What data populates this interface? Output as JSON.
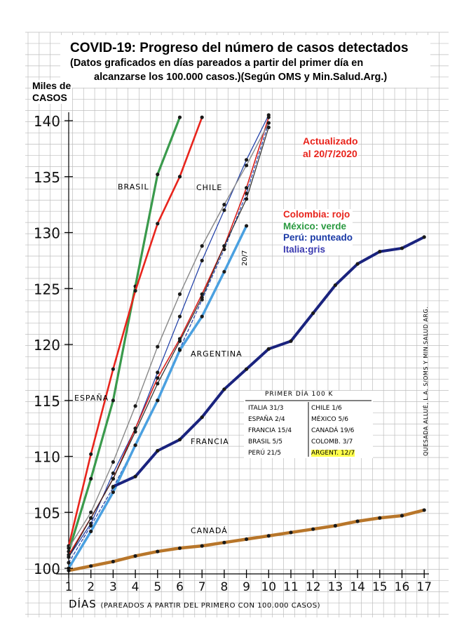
{
  "title": "COVID-19: Progreso del número de casos detectados",
  "subtitle_line1": "(Datos graficados en días pareados a partir del primer día en",
  "subtitle_line2": "alcanzarse los 100.000 casos.)(Según OMS y Min.Salud.Arg.)",
  "ylabel_line1": "Miles de",
  "ylabel_line2": "CASOS",
  "xlabel_main": "DÍAS",
  "xlabel_note": "(PAREADOS A PARTIR DEL PRIMERO CON 100.000 CASOS)",
  "updated_line1": "Actualizado",
  "updated_line2": "al 20/7/2020",
  "legend_note": {
    "colombia": "Colombia: rojo",
    "mexico": "México: verde",
    "peru": "Perú: punteado",
    "italia": "Italia:gris"
  },
  "credit": "QUESADA ALLUÉ, L.A. S/OMS Y MIN.SALUD ARG.",
  "annotation_207": "20/7",
  "table": {
    "title": "PRIMER DÍA 100 K",
    "rows": [
      [
        "ITALIA 31/3",
        "CHILE 1/6"
      ],
      [
        "ESPAÑA 2/4",
        "MÉXICO 5/6"
      ],
      [
        "FRANCIA 15/4",
        "CANADÁ 19/6"
      ],
      [
        "BRASIL 5/5",
        "COLOMB. 3/7"
      ],
      [
        "PERÚ 21/5",
        "ARGENT. 12/7"
      ]
    ]
  },
  "colors": {
    "brasil": "#3a9a4c",
    "mexico": "#3a9a4c",
    "espana": "#e8241c",
    "colombia": "#d8201c",
    "italia": "#888888",
    "chile": "#1a3aa6",
    "peru": "#1a3aa6",
    "francia": "#4aa0e0",
    "argentina": "#1a237e",
    "canada": "#b8762a",
    "other_dark": "#2a2a2a",
    "grid": "#bdbdbd"
  },
  "chart_data": {
    "type": "line",
    "title": "COVID-19: Progreso del número de casos detectados",
    "xlabel": "DÍAS (PAREADOS A PARTIR DEL PRIMERO CON 100.000 CASOS)",
    "ylabel": "Miles de CASOS",
    "x_ticks": [
      "1",
      "2",
      "3",
      "4",
      "5",
      "6",
      "7",
      "8",
      "9",
      "10",
      "11",
      "12",
      "13",
      "14",
      "15",
      "16",
      "17"
    ],
    "y_ticks": [
      "100",
      "105",
      "110",
      "115",
      "120",
      "125",
      "130",
      "135",
      "140"
    ],
    "xlim": [
      1,
      17
    ],
    "ylim": [
      100,
      140
    ],
    "grid": true,
    "series": [
      {
        "name": "BRASIL",
        "color_key": "brasil",
        "x": [
          1,
          2,
          3,
          4,
          5,
          6
        ],
        "y": [
          101.5,
          108.0,
          115.0,
          125.2,
          135.2,
          140.3
        ]
      },
      {
        "name": "ESPAÑA",
        "color_key": "espana",
        "x": [
          1,
          2,
          3,
          4,
          5,
          6,
          7
        ],
        "y": [
          102.0,
          110.2,
          117.8,
          124.8,
          130.8,
          135.0,
          140.3
        ]
      },
      {
        "name": "CHILE",
        "color_key": "chile",
        "x": [
          1,
          2,
          3,
          4,
          5,
          6,
          7,
          8,
          9,
          10
        ],
        "y": [
          101.0,
          104.0,
          108.5,
          112.5,
          117.5,
          122.5,
          127.5,
          132.0,
          136.5,
          140.5
        ]
      },
      {
        "name": "Perú",
        "color_key": "peru",
        "x": [
          1,
          2,
          3,
          4,
          5,
          6,
          7,
          8,
          9,
          10
        ],
        "y": [
          100.5,
          103.8,
          107.2,
          111.0,
          115.0,
          119.6,
          124.0,
          128.5,
          133.5,
          139.8
        ]
      },
      {
        "name": "Colombia",
        "color_key": "colombia",
        "x": [
          1,
          2,
          3,
          4,
          5,
          6,
          7,
          8,
          9,
          10
        ],
        "y": [
          101.2,
          104.5,
          108.0,
          112.5,
          117.0,
          120.5,
          124.5,
          128.8,
          134.0,
          140.3
        ]
      },
      {
        "name": "Italia",
        "color_key": "italia",
        "x": [
          1,
          2,
          3,
          4,
          5,
          6,
          7,
          8,
          9,
          10
        ],
        "y": [
          101.8,
          105.0,
          109.5,
          114.5,
          119.8,
          124.5,
          128.8,
          132.5,
          136.0,
          139.8
        ]
      },
      {
        "name": "México",
        "color_key": "other_dark",
        "x": [
          1,
          2,
          3,
          4,
          5,
          6,
          7,
          8,
          9,
          10
        ],
        "y": [
          101.0,
          104.5,
          108.0,
          112.2,
          116.5,
          120.3,
          124.2,
          128.8,
          133.0,
          139.4
        ]
      },
      {
        "name": "FRANCIA",
        "color_key": "francia",
        "x": [
          1,
          2,
          3,
          4,
          5,
          6,
          7,
          8,
          9
        ],
        "y": [
          100.0,
          103.3,
          106.8,
          111.0,
          115.0,
          119.5,
          122.5,
          126.5,
          130.6
        ]
      },
      {
        "name": "ARGENTINA",
        "color_key": "argentina",
        "x": [
          3,
          4,
          5,
          6,
          7,
          8,
          9,
          10,
          11,
          12,
          13,
          14,
          15,
          16,
          17
        ],
        "y": [
          107.3,
          108.2,
          110.5,
          111.5,
          113.5,
          116.0,
          117.8,
          119.6,
          120.3,
          122.8,
          125.3,
          127.2,
          128.3,
          128.6,
          129.6
        ]
      },
      {
        "name": "CANADÁ",
        "color_key": "canada",
        "x": [
          1,
          2,
          3,
          4,
          5,
          6,
          7,
          8,
          9,
          10,
          11,
          12,
          13,
          14,
          15,
          16,
          17
        ],
        "y": [
          99.8,
          100.2,
          100.6,
          101.1,
          101.5,
          101.8,
          102.0,
          102.3,
          102.6,
          102.9,
          103.2,
          103.5,
          103.8,
          104.2,
          104.5,
          104.7,
          105.2
        ]
      }
    ]
  }
}
